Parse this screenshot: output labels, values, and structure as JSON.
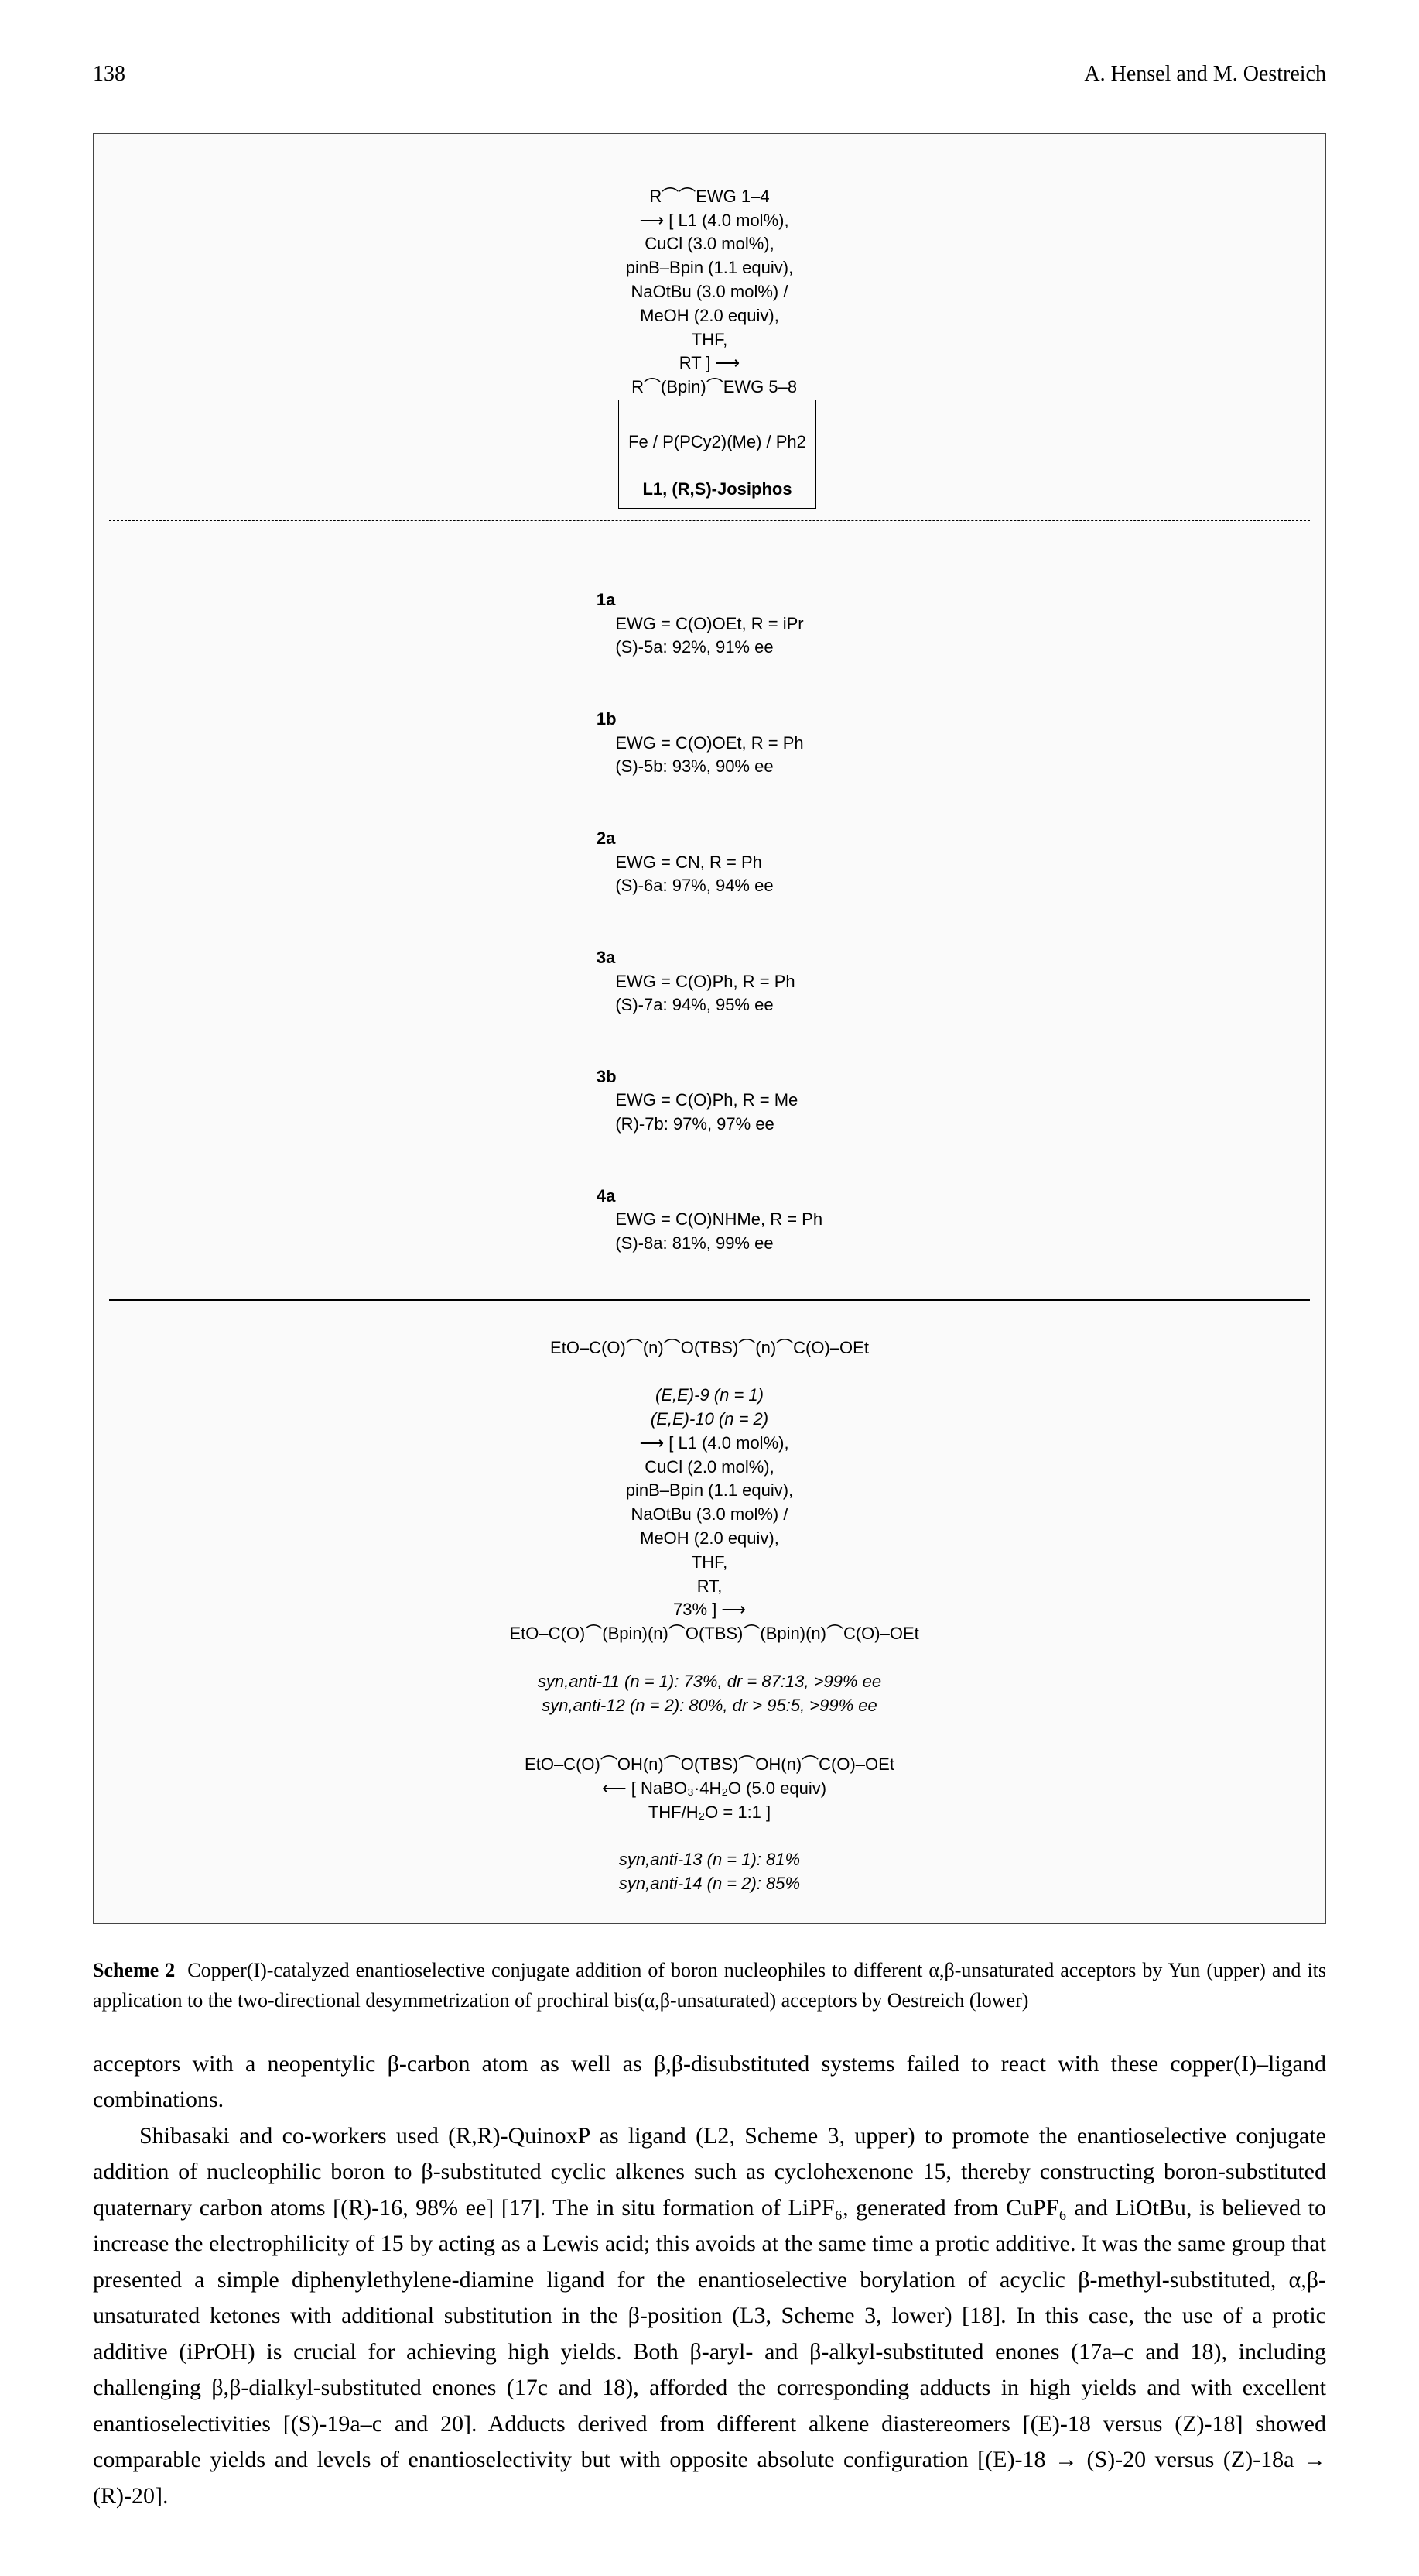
{
  "page": {
    "number": "138",
    "authors": "A. Hensel and M. Oestreich"
  },
  "scheme": {
    "label": "Scheme 2",
    "caption_text": "Copper(I)-catalyzed enantioselective conjugate addition of boron nucleophiles to different α,β-unsaturated acceptors by Yun (upper) and its application to the two-directional desymmetrization of prochiral bis(α,β-unsaturated) acceptors by Oestreich (lower)",
    "upper": {
      "substrate_label": "R⌒⌒EWG   1–4",
      "conditions": [
        "L1 (4.0 mol%)",
        "CuCl (3.0 mol%)",
        "pinB–Bpin (1.1 equiv)",
        "NaOtBu (3.0 mol%)",
        "MeOH (2.0 equiv)",
        "THF",
        "RT"
      ],
      "product_label": "R⌒(Bpin)⌒EWG   5–8",
      "ligand_box": "L1, (R,S)-Josiphos",
      "ligand_structure": "Fe / P(PCy2)(Me) / Ph2",
      "entries": [
        {
          "id": "1a",
          "defs": "EWG = C(O)OEt, R = iPr",
          "result": "(S)-5a: 92%, 91% ee"
        },
        {
          "id": "1b",
          "defs": "EWG = C(O)OEt, R = Ph",
          "result": "(S)-5b: 93%, 90% ee"
        },
        {
          "id": "2a",
          "defs": "EWG = CN, R = Ph",
          "result": "(S)-6a: 97%, 94% ee"
        },
        {
          "id": "3a",
          "defs": "EWG = C(O)Ph, R = Ph",
          "result": "(S)-7a: 94%, 95% ee"
        },
        {
          "id": "3b",
          "defs": "EWG = C(O)Ph, R = Me",
          "result": "(R)-7b: 97%, 97% ee"
        },
        {
          "id": "4a",
          "defs": "EWG = C(O)NHMe, R = Ph",
          "result": "(S)-8a: 81%, 99% ee"
        }
      ]
    },
    "lower": {
      "substrate_label": "EtO–C(O)⌒(n)⌒O(TBS)⌒(n)⌒C(O)–OEt",
      "substrate_ids": "(E,E)-9 (n = 1)\n(E,E)-10 (n = 2)",
      "conditions": [
        "L1 (4.0 mol%)",
        "CuCl (2.0 mol%)",
        "pinB–Bpin (1.1 equiv)",
        "NaOtBu (3.0 mol%)",
        "MeOH (2.0 equiv)",
        "THF",
        "RT",
        "73%"
      ],
      "product_label": "EtO–C(O)⌒(Bpin)(n)⌒O(TBS)⌒(Bpin)(n)⌒C(O)–OEt",
      "product_results": "syn,anti-11 (n = 1): 73%, dr = 87:13, >99% ee\nsyn,anti-12 (n = 2): 80%, dr > 95:5, >99% ee",
      "workup_arrow": "NaBO₃·4H₂O (5.0 equiv)\nTHF/H₂O = 1:1",
      "final_product_label": "EtO–C(O)⌒OH(n)⌒O(TBS)⌒OH(n)⌒C(O)–OEt",
      "final_results": "syn,anti-13 (n = 1): 81%\nsyn,anti-14 (n = 2): 85%"
    }
  },
  "body": {
    "p1": "acceptors with a neopentylic β-carbon atom as well as β,β-disubstituted systems failed to react with these copper(I)–ligand combinations.",
    "p2": "Shibasaki and co-workers used (R,R)-QuinoxP as ligand (L2, Scheme 3, upper) to promote the enantioselective conjugate addition of nucleophilic boron to β-substituted cyclic alkenes such as cyclohexenone 15, thereby constructing boron-substituted quaternary carbon atoms [(R)-16, 98% ee] [17]. The in situ formation of LiPF₆, generated from CuPF₆ and LiOtBu, is believed to increase the electrophilicity of 15 by acting as a Lewis acid; this avoids at the same time a protic additive. It was the same group that presented a simple diphenylethylene-diamine ligand for the enantioselective borylation of acyclic β-methyl-substituted, α,β-unsaturated ketones with additional substitution in the β-position (L3, Scheme 3, lower) [18]. In this case, the use of a protic additive (iPrOH) is crucial for achieving high yields. Both β-aryl- and β-alkyl-substituted enones (17a–c and 18), including challenging β,β-dialkyl-substituted enones (17c and 18), afforded the corresponding adducts in high yields and with excellent enantioselectivities [(S)-19a–c and 20]. Adducts derived from different alkene diastereomers [(E)-18 versus (Z)-18] showed comparable yields and levels of enantioselectivity but with opposite absolute configuration [(E)-18 → (S)-20 versus (Z)-18a → (R)-20]."
  }
}
